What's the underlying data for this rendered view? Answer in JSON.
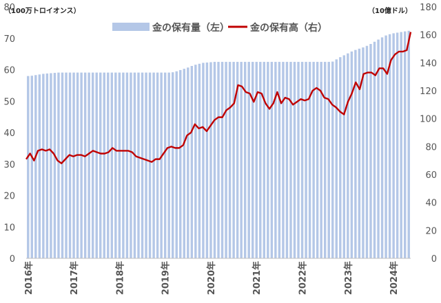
{
  "chart_data": {
    "type": "bar+line",
    "left_axis": {
      "unit_label": "（100万トロイオンス）",
      "ylim": [
        0,
        80
      ],
      "ticks": [
        "0",
        "10",
        "20",
        "30",
        "40",
        "50",
        "60",
        "70",
        "80"
      ]
    },
    "right_axis": {
      "unit_label": "（10億ドル）",
      "ylim": [
        0,
        180
      ],
      "ticks": [
        "0",
        "20",
        "40",
        "60",
        "80",
        "100",
        "120",
        "140",
        "160",
        "180"
      ]
    },
    "x_tick_labels": [
      "2016年",
      "2017年",
      "2018年",
      "2019年",
      "2020年",
      "2021年",
      "2022年",
      "2023年",
      "2024年"
    ],
    "legend_position": "top-center",
    "series": [
      {
        "name": "金の保有量（左）",
        "type": "bar",
        "axis": "left",
        "color": "#b4c7e7",
        "values": [
          58.0,
          58.1,
          58.3,
          58.5,
          58.7,
          58.8,
          58.9,
          59.0,
          59.1,
          59.1,
          59.1,
          59.1,
          59.1,
          59.1,
          59.1,
          59.1,
          59.1,
          59.1,
          59.1,
          59.1,
          59.1,
          59.1,
          59.1,
          59.1,
          59.1,
          59.1,
          59.1,
          59.1,
          59.1,
          59.1,
          59.1,
          59.1,
          59.1,
          59.1,
          59.1,
          59.1,
          59.1,
          59.1,
          59.2,
          59.5,
          59.9,
          60.3,
          60.7,
          61.2,
          61.6,
          61.9,
          62.2,
          62.3,
          62.4,
          62.5,
          62.5,
          62.5,
          62.5,
          62.5,
          62.5,
          62.5,
          62.5,
          62.5,
          62.5,
          62.5,
          62.5,
          62.5,
          62.5,
          62.5,
          62.5,
          62.5,
          62.5,
          62.5,
          62.5,
          62.5,
          62.5,
          62.5,
          62.5,
          62.5,
          62.5,
          62.5,
          62.5,
          62.5,
          62.5,
          62.5,
          62.6,
          63.3,
          64.0,
          64.6,
          65.2,
          65.8,
          66.3,
          66.7,
          67.1,
          67.6,
          68.2,
          68.9,
          69.6,
          70.3,
          70.9,
          71.3,
          71.6,
          71.8,
          72.0,
          72.2,
          72.4
        ]
      },
      {
        "name": "金の保有高（右）",
        "type": "line",
        "axis": "right",
        "color": "#c00000",
        "values": [
          71,
          75,
          70,
          77,
          78,
          77,
          78,
          75,
          70,
          68,
          71,
          74,
          73,
          74,
          74,
          73,
          75,
          77,
          76,
          75,
          75,
          76,
          79,
          77,
          77,
          77,
          77,
          76,
          73,
          72,
          71,
          70,
          69,
          71,
          71,
          75,
          79,
          80,
          79,
          79,
          81,
          88,
          90,
          96,
          93,
          94,
          91,
          95,
          99,
          101,
          101,
          106,
          108,
          111,
          124,
          123,
          119,
          118,
          112,
          119,
          118,
          111,
          107,
          111,
          119,
          111,
          115,
          114,
          110,
          112,
          114,
          113,
          114,
          120,
          122,
          120,
          115,
          114,
          110,
          108,
          105,
          103,
          112,
          118,
          126,
          121,
          132,
          133,
          133,
          131,
          136,
          136,
          132,
          142,
          146,
          148,
          148,
          149,
          162
        ]
      }
    ]
  }
}
